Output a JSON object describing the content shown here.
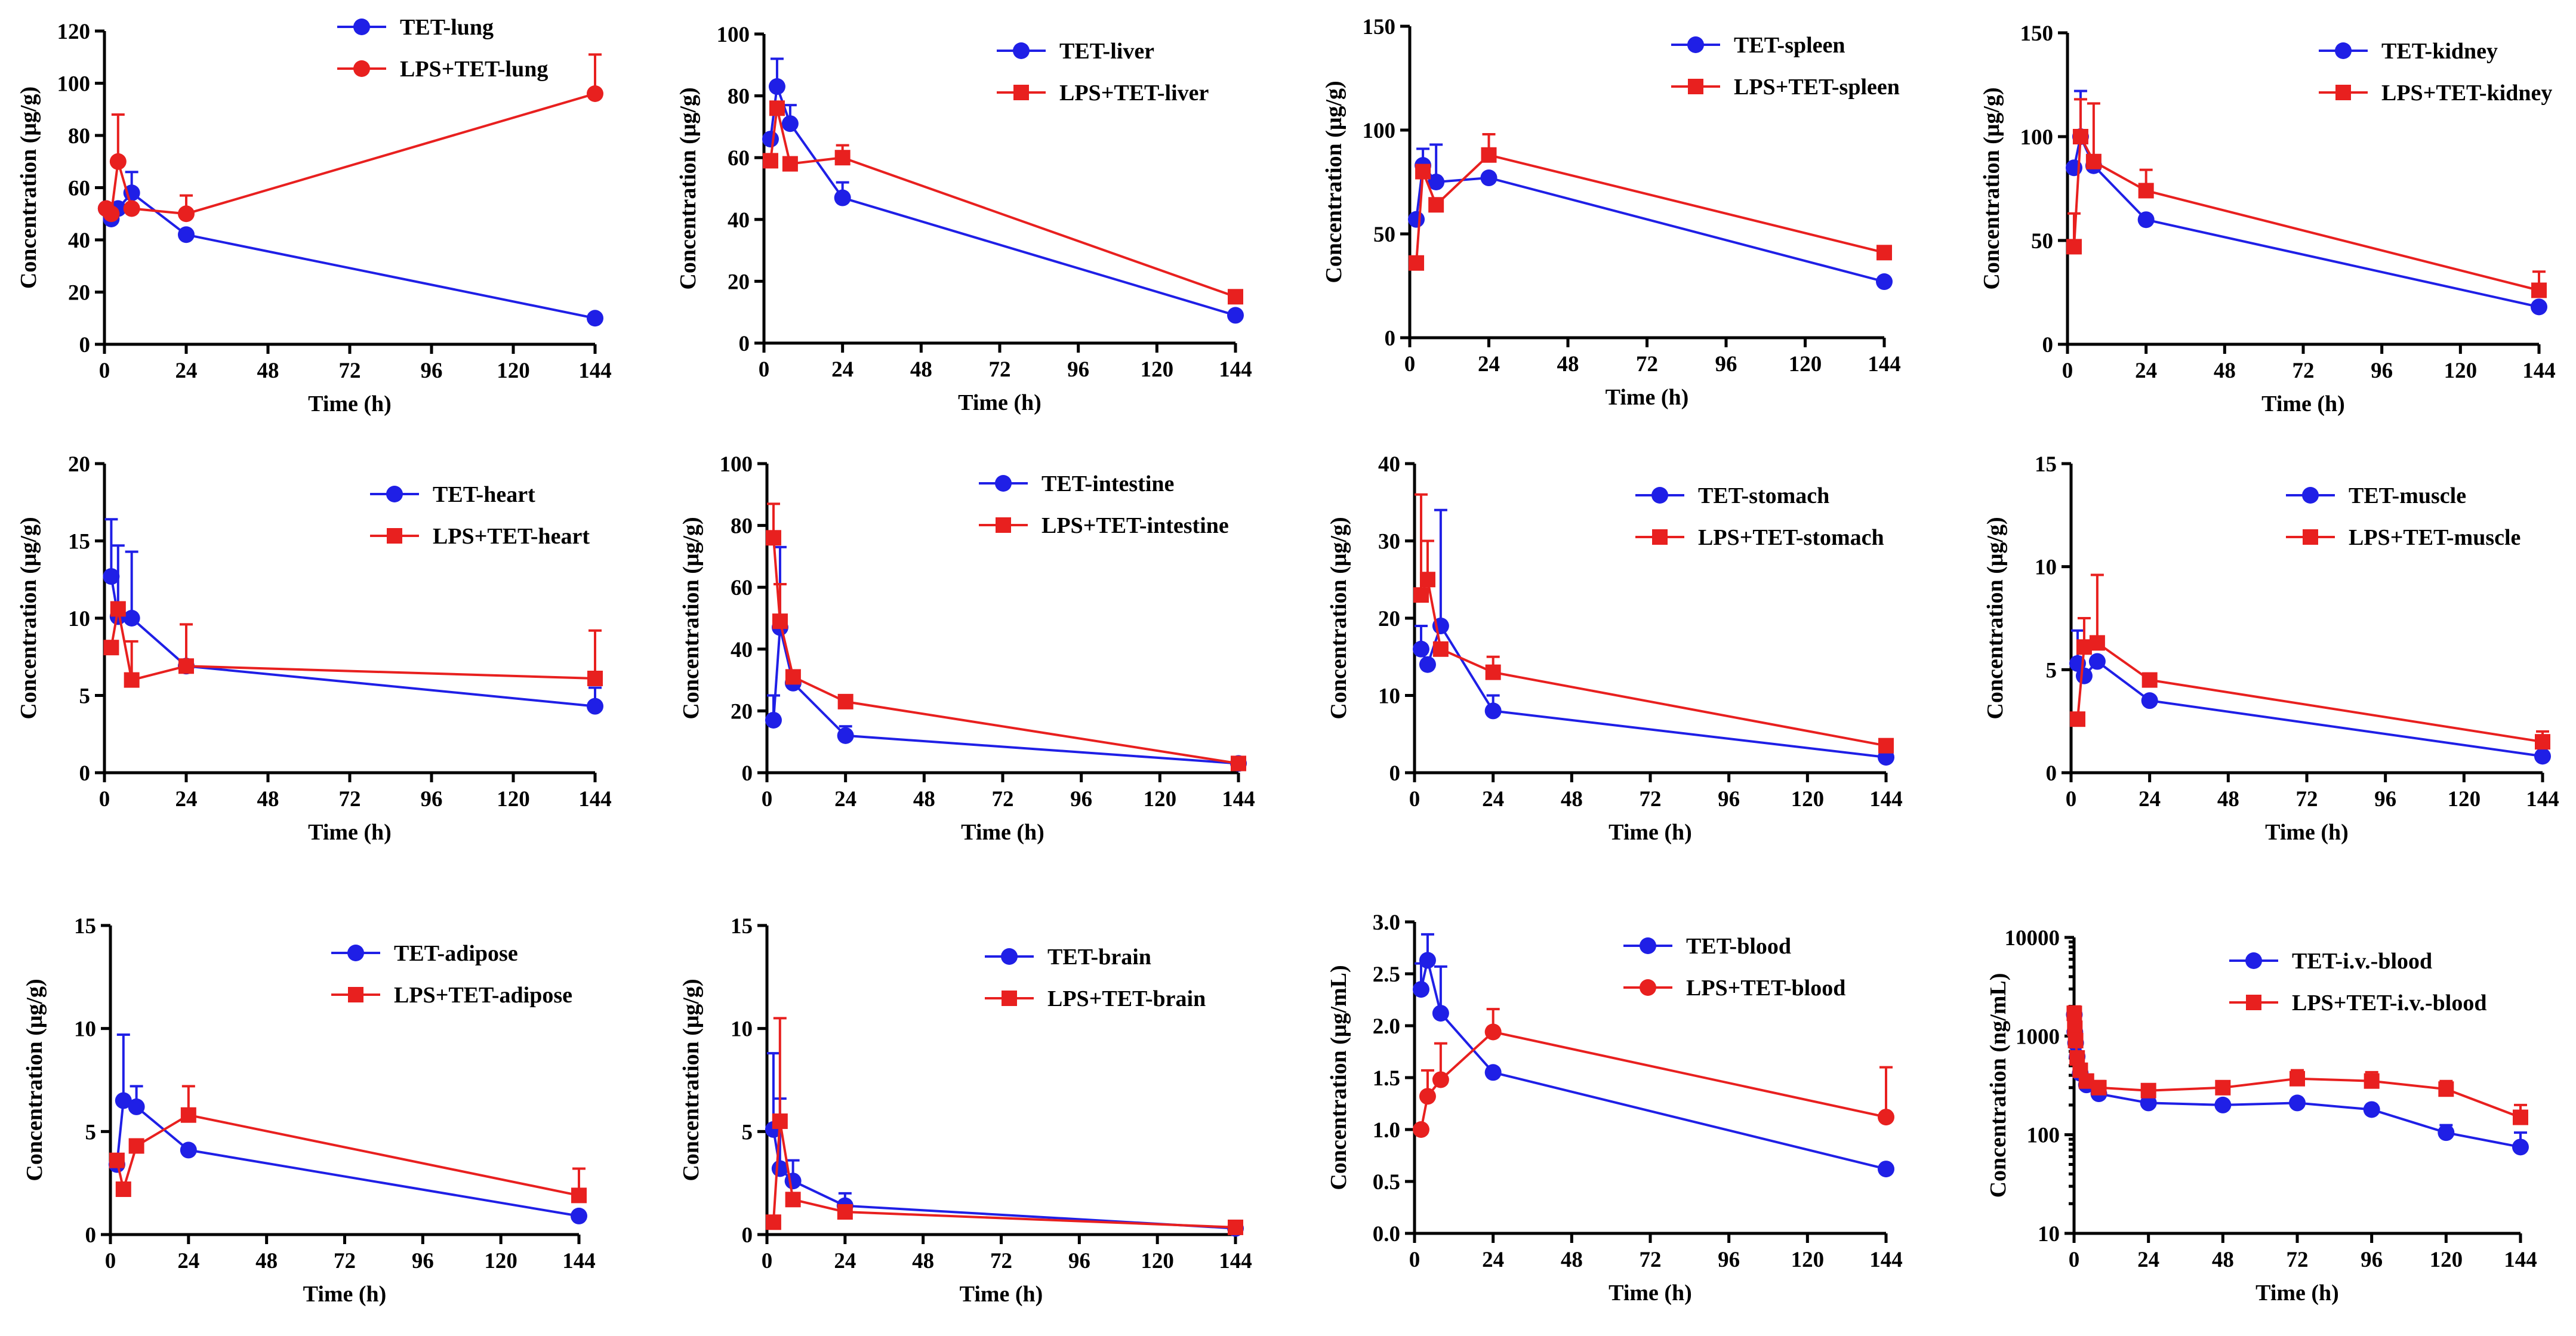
{
  "colors": {
    "tet": "#1f1fe6",
    "lps": "#e8201f"
  },
  "chart_data": [
    {
      "type": "line",
      "title": "",
      "xlabel": "Time (h)",
      "ylabel": "Concentration (μg/g)",
      "xlim": [
        0,
        144
      ],
      "ylim": [
        0,
        120
      ],
      "yscale": "linear",
      "xticks": [
        "0",
        "24",
        "48",
        "72",
        "96",
        "120",
        "144"
      ],
      "yticks": [
        "0",
        "20",
        "40",
        "60",
        "80",
        "100",
        "120"
      ],
      "series": [
        {
          "name": "TET-lung",
          "marker": "circle",
          "x": [
            0.5,
            2,
            4,
            8,
            24,
            144
          ],
          "values": [
            52,
            48,
            52,
            58,
            42,
            10
          ],
          "errors": [
            0,
            0,
            0,
            8,
            0,
            0
          ]
        },
        {
          "name": "LPS+TET-lung",
          "marker": "circle",
          "x": [
            0.5,
            2,
            4,
            8,
            24,
            144
          ],
          "values": [
            52,
            50,
            70,
            52,
            50,
            96
          ],
          "errors": [
            0,
            0,
            18,
            0,
            7,
            15
          ]
        }
      ]
    },
    {
      "type": "line",
      "title": "",
      "xlabel": "Time (h)",
      "ylabel": "Concentration (μg/g)",
      "xlim": [
        0,
        144
      ],
      "ylim": [
        0,
        100
      ],
      "yscale": "linear",
      "xticks": [
        "0",
        "24",
        "48",
        "72",
        "96",
        "120",
        "144"
      ],
      "yticks": [
        "0",
        "20",
        "40",
        "60",
        "80",
        "100"
      ],
      "series": [
        {
          "name": "TET-liver",
          "marker": "circle",
          "x": [
            2,
            4,
            8,
            24,
            144
          ],
          "values": [
            66,
            83,
            71,
            47,
            9
          ],
          "errors": [
            0,
            9,
            6,
            5,
            0
          ]
        },
        {
          "name": "LPS+TET-liver",
          "marker": "square",
          "x": [
            2,
            4,
            8,
            24,
            144
          ],
          "values": [
            59,
            76,
            58,
            60,
            15
          ],
          "errors": [
            0,
            0,
            0,
            4,
            0
          ]
        }
      ]
    },
    {
      "type": "line",
      "title": "",
      "xlabel": "Time (h)",
      "ylabel": "Concentration (μg/g)",
      "xlim": [
        0,
        144
      ],
      "ylim": [
        0,
        150
      ],
      "yscale": "linear",
      "xticks": [
        "0",
        "24",
        "48",
        "72",
        "96",
        "120",
        "144"
      ],
      "yticks": [
        "0",
        "50",
        "100",
        "150"
      ],
      "series": [
        {
          "name": "TET-spleen",
          "marker": "circle",
          "x": [
            2,
            4,
            8,
            24,
            144
          ],
          "values": [
            57,
            83,
            75,
            77,
            27
          ],
          "errors": [
            0,
            8,
            18,
            0,
            0
          ]
        },
        {
          "name": "LPS+TET-spleen",
          "marker": "square",
          "x": [
            2,
            4,
            8,
            24,
            144
          ],
          "values": [
            36,
            80,
            64,
            88,
            41
          ],
          "errors": [
            0,
            0,
            0,
            10,
            0
          ]
        }
      ]
    },
    {
      "type": "line",
      "title": "",
      "xlabel": "Time (h)",
      "ylabel": "Concentration (μg/g)",
      "xlim": [
        0,
        144
      ],
      "ylim": [
        0,
        150
      ],
      "yscale": "linear",
      "xticks": [
        "0",
        "24",
        "48",
        "72",
        "96",
        "120",
        "144"
      ],
      "yticks": [
        "0",
        "50",
        "100",
        "150"
      ],
      "series": [
        {
          "name": "TET-kidney",
          "marker": "circle",
          "x": [
            2,
            4,
            8,
            24,
            144
          ],
          "values": [
            85,
            100,
            86,
            60,
            18
          ],
          "errors": [
            0,
            22,
            0,
            0,
            0
          ]
        },
        {
          "name": "LPS+TET-kidney",
          "marker": "square",
          "x": [
            2,
            4,
            8,
            24,
            144
          ],
          "values": [
            47,
            100,
            88,
            74,
            26
          ],
          "errors": [
            16,
            18,
            28,
            10,
            9
          ]
        }
      ]
    },
    {
      "type": "line",
      "title": "",
      "xlabel": "Time (h)",
      "ylabel": "Concentration (μg/g)",
      "xlim": [
        0,
        144
      ],
      "ylim": [
        0,
        20
      ],
      "yscale": "linear",
      "xticks": [
        "0",
        "24",
        "48",
        "72",
        "96",
        "120",
        "144"
      ],
      "yticks": [
        "0",
        "5",
        "10",
        "15",
        "20"
      ],
      "series": [
        {
          "name": "TET-heart",
          "marker": "circle",
          "x": [
            2,
            4,
            8,
            24,
            144
          ],
          "values": [
            12.7,
            10.1,
            10.0,
            6.9,
            4.3
          ],
          "errors": [
            3.7,
            4.6,
            4.3,
            0,
            1.2
          ]
        },
        {
          "name": "LPS+TET-heart",
          "marker": "square",
          "x": [
            2,
            4,
            8,
            24,
            144
          ],
          "values": [
            8.1,
            10.6,
            6.0,
            6.9,
            6.1
          ],
          "errors": [
            0,
            0,
            2.5,
            2.7,
            3.1
          ]
        }
      ]
    },
    {
      "type": "line",
      "title": "",
      "xlabel": "Time (h)",
      "ylabel": "Concentration (μg/g)",
      "xlim": [
        0,
        144
      ],
      "ylim": [
        0,
        100
      ],
      "yscale": "linear",
      "xticks": [
        "0",
        "24",
        "48",
        "72",
        "96",
        "120",
        "144"
      ],
      "yticks": [
        "0",
        "20",
        "40",
        "60",
        "80",
        "100"
      ],
      "series": [
        {
          "name": "TET-intestine",
          "marker": "circle",
          "x": [
            2,
            4,
            8,
            24,
            144
          ],
          "values": [
            17,
            47,
            29,
            12,
            3
          ],
          "errors": [
            8,
            26,
            0,
            3,
            0
          ]
        },
        {
          "name": "LPS+TET-intestine",
          "marker": "square",
          "x": [
            2,
            4,
            8,
            24,
            144
          ],
          "values": [
            76,
            49,
            31,
            23,
            3
          ],
          "errors": [
            11,
            12,
            0,
            0,
            0
          ]
        }
      ]
    },
    {
      "type": "line",
      "title": "",
      "xlabel": "Time (h)",
      "ylabel": "Concentration (μg/g)",
      "xlim": [
        0,
        144
      ],
      "ylim": [
        0,
        40
      ],
      "yscale": "linear",
      "xticks": [
        "0",
        "24",
        "48",
        "72",
        "96",
        "120",
        "144"
      ],
      "yticks": [
        "0",
        "10",
        "20",
        "30",
        "40"
      ],
      "series": [
        {
          "name": "TET-stomach",
          "marker": "circle",
          "x": [
            2,
            4,
            8,
            24,
            144
          ],
          "values": [
            16,
            14,
            19,
            8,
            2
          ],
          "errors": [
            3,
            0,
            15,
            2,
            0
          ]
        },
        {
          "name": "LPS+TET-stomach",
          "marker": "square",
          "x": [
            2,
            4,
            8,
            24,
            144
          ],
          "values": [
            23,
            25,
            16,
            13,
            3.5
          ],
          "errors": [
            13,
            5,
            0,
            2,
            0
          ]
        }
      ]
    },
    {
      "type": "line",
      "title": "",
      "xlabel": "Time (h)",
      "ylabel": "Concentration (μg/g)",
      "xlim": [
        0,
        144
      ],
      "ylim": [
        0,
        15
      ],
      "yscale": "linear",
      "xticks": [
        "0",
        "24",
        "48",
        "72",
        "96",
        "120",
        "144"
      ],
      "yticks": [
        "0",
        "5",
        "10",
        "15"
      ],
      "series": [
        {
          "name": "TET-muscle",
          "marker": "circle",
          "x": [
            2,
            4,
            8,
            24,
            144
          ],
          "values": [
            5.3,
            4.7,
            5.4,
            3.5,
            0.8
          ],
          "errors": [
            1.6,
            0,
            0,
            0,
            0
          ]
        },
        {
          "name": "LPS+TET-muscle",
          "marker": "square",
          "x": [
            2,
            4,
            8,
            24,
            144
          ],
          "values": [
            2.6,
            6.1,
            6.3,
            4.5,
            1.5
          ],
          "errors": [
            0,
            1.4,
            3.3,
            0.3,
            0.5
          ]
        }
      ]
    },
    {
      "type": "line",
      "title": "",
      "xlabel": "Time (h)",
      "ylabel": "Concentration (μg/g)",
      "xlim": [
        0,
        144
      ],
      "ylim": [
        0,
        15
      ],
      "yscale": "linear",
      "xticks": [
        "0",
        "24",
        "48",
        "72",
        "96",
        "120",
        "144"
      ],
      "yticks": [
        "0",
        "5",
        "10",
        "15"
      ],
      "series": [
        {
          "name": "TET-adipose",
          "marker": "circle",
          "x": [
            2,
            4,
            8,
            24,
            144
          ],
          "values": [
            3.4,
            6.5,
            6.2,
            4.1,
            0.9
          ],
          "errors": [
            0,
            3.2,
            1.0,
            0,
            0
          ]
        },
        {
          "name": "LPS+TET-adipose",
          "marker": "square",
          "x": [
            2,
            4,
            8,
            24,
            144
          ],
          "values": [
            3.6,
            2.2,
            4.3,
            5.8,
            1.9
          ],
          "errors": [
            0,
            0,
            0,
            1.4,
            1.3
          ]
        }
      ]
    },
    {
      "type": "line",
      "title": "",
      "xlabel": "Time (h)",
      "ylabel": "Concentration (μg/g)",
      "xlim": [
        0,
        144
      ],
      "ylim": [
        0,
        15
      ],
      "yscale": "linear",
      "xticks": [
        "0",
        "24",
        "48",
        "72",
        "96",
        "120",
        "144"
      ],
      "yticks": [
        "0",
        "5",
        "10",
        "15"
      ],
      "series": [
        {
          "name": "TET-brain",
          "marker": "circle",
          "x": [
            2,
            4,
            8,
            24,
            144
          ],
          "values": [
            5.1,
            3.2,
            2.6,
            1.4,
            0.3
          ],
          "errors": [
            3.7,
            3.4,
            1.0,
            0.6,
            0
          ]
        },
        {
          "name": "LPS+TET-brain",
          "marker": "square",
          "x": [
            2,
            4,
            8,
            24,
            144
          ],
          "values": [
            0.6,
            5.5,
            1.7,
            1.1,
            0.35
          ],
          "errors": [
            0,
            5.0,
            0,
            0,
            0
          ]
        }
      ]
    },
    {
      "type": "line",
      "title": "",
      "xlabel": "Time (h)",
      "ylabel": "Concentration (μg/mL)",
      "xlim": [
        0,
        144
      ],
      "ylim": [
        0,
        3.0
      ],
      "yscale": "linear",
      "xticks": [
        "0",
        "24",
        "48",
        "72",
        "96",
        "120",
        "144"
      ],
      "yticks": [
        "0.0",
        "0.5",
        "1.0",
        "1.5",
        "2.0",
        "2.5",
        "3.0"
      ],
      "series": [
        {
          "name": "TET-blood",
          "marker": "circle",
          "x": [
            2,
            4,
            8,
            24,
            144
          ],
          "values": [
            2.35,
            2.63,
            2.12,
            1.55,
            0.62
          ],
          "errors": [
            0.25,
            0.25,
            0.45,
            0,
            0
          ]
        },
        {
          "name": "LPS+TET-blood",
          "marker": "circle",
          "x": [
            2,
            4,
            8,
            24,
            144
          ],
          "values": [
            1.0,
            1.32,
            1.48,
            1.94,
            1.12
          ],
          "errors": [
            0,
            0.25,
            0.35,
            0.22,
            0.48
          ]
        }
      ]
    },
    {
      "type": "line",
      "title": "",
      "xlabel": "Time (h)",
      "ylabel": "Concentration (ng/mL)",
      "xlim": [
        0,
        144
      ],
      "ylim": [
        10,
        10000
      ],
      "yscale": "log",
      "xticks": [
        "0",
        "24",
        "48",
        "72",
        "96",
        "120",
        "144"
      ],
      "yticks": [
        "10",
        "100",
        "1000",
        "10000"
      ],
      "series": [
        {
          "name": "TET-i.v.-blood",
          "marker": "circle",
          "x": [
            0.083,
            0.25,
            0.5,
            1,
            2,
            4,
            8,
            24,
            48,
            72,
            96,
            120,
            144
          ],
          "values": [
            1650,
            1100,
            850,
            620,
            420,
            320,
            260,
            210,
            200,
            210,
            180,
            105,
            75
          ],
          "errors": [
            0,
            0,
            0,
            0,
            0,
            0,
            0,
            0,
            0,
            0,
            0,
            20,
            30
          ]
        },
        {
          "name": "LPS+TET-i.v.-blood",
          "marker": "square",
          "x": [
            0.083,
            0.25,
            0.5,
            1,
            2,
            4,
            8,
            24,
            48,
            72,
            96,
            120,
            144
          ],
          "values": [
            1700,
            1200,
            900,
            600,
            450,
            350,
            300,
            280,
            300,
            370,
            350,
            290,
            150
          ],
          "errors": [
            300,
            0,
            0,
            0,
            0,
            0,
            50,
            40,
            40,
            80,
            80,
            60,
            50
          ]
        }
      ]
    }
  ]
}
